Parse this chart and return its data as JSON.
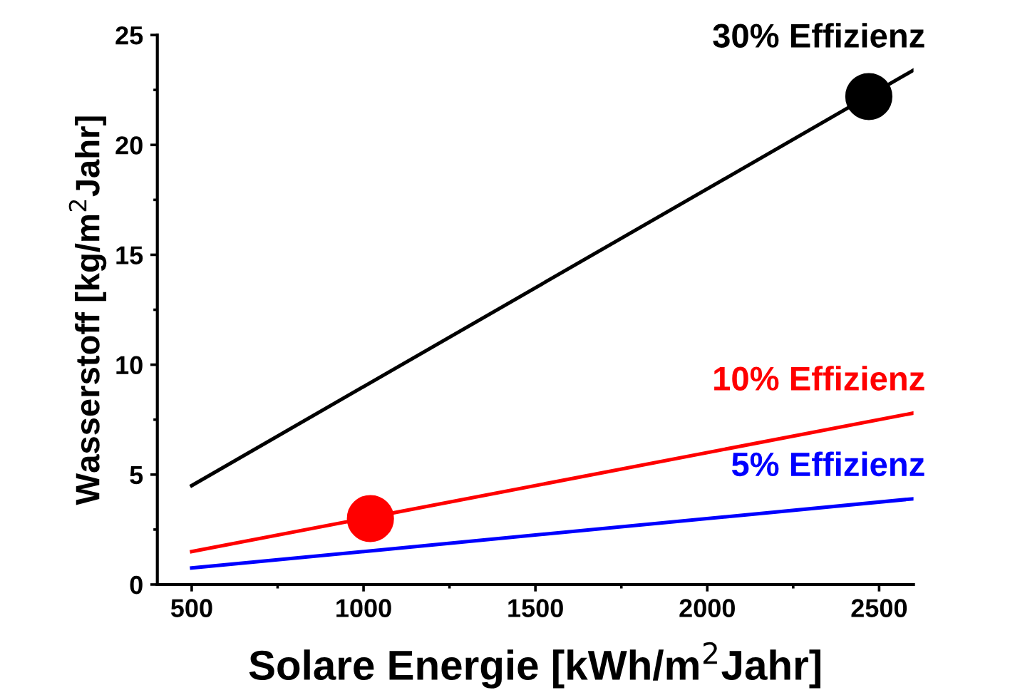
{
  "chart_data": {
    "type": "line",
    "xlabel": "Solare Energie [kWh/m$^{2}$Jahr]",
    "ylabel": "Wasserstoff [kg/m$^{2}$Jahr]",
    "xlim": [
      400,
      2600
    ],
    "xticks": [
      500,
      1000,
      1500,
      2000,
      2500
    ],
    "ylim": [
      0,
      25
    ],
    "yticks": [
      0,
      5,
      10,
      15,
      20,
      25
    ],
    "grid": false,
    "legend": false,
    "marker": "none",
    "line_style": "solid",
    "series": [
      {
        "name": "30% Effizienz",
        "color": "#000000",
        "x": [
          500,
          2600
        ],
        "values": [
          4.5,
          23.4
        ]
      },
      {
        "name": "10% Effizienz",
        "color": "#ff0000",
        "x": [
          500,
          2600
        ],
        "values": [
          1.5,
          7.8
        ]
      },
      {
        "name": "5% Effizienz",
        "color": "#0000ff",
        "x": [
          500,
          2600
        ],
        "values": [
          0.75,
          3.9
        ]
      },
      {
        "type": "scatter",
        "marker": "circle",
        "color": "#000000",
        "x": [
          2470
        ],
        "values": [
          22.2
        ]
      },
      {
        "type": "scatter",
        "marker": "circle",
        "color": "#ff0000",
        "x": [
          1020
        ],
        "values": [
          3.0
        ]
      }
    ]
  }
}
